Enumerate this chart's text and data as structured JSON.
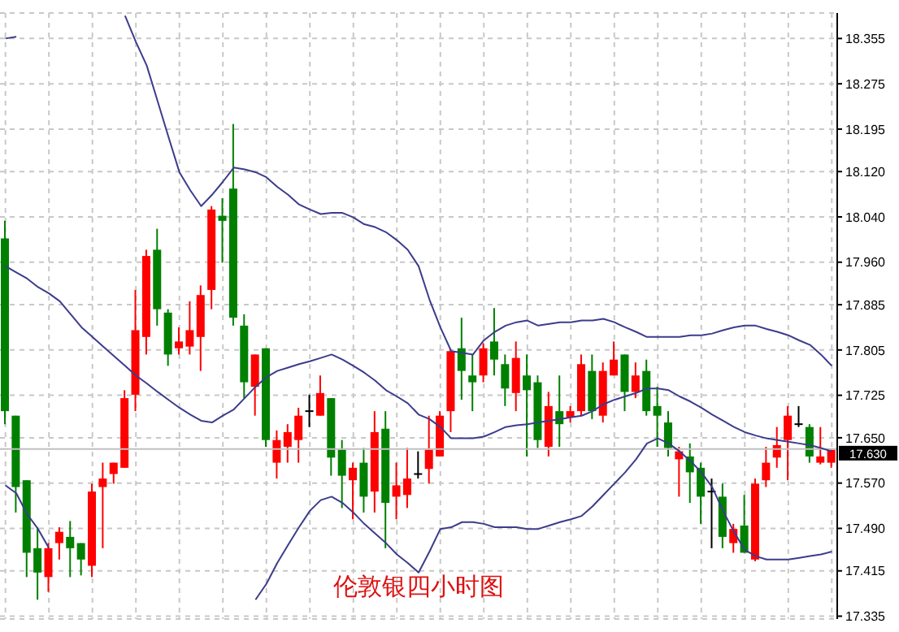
{
  "chart_data": {
    "type": "candlestick",
    "title": "伦敦银四小时图",
    "categories": [
      null,
      null,
      null,
      null,
      null,
      null,
      null,
      null,
      null,
      null,
      null,
      null,
      null,
      null,
      null,
      null,
      null,
      null,
      null,
      null,
      null,
      null,
      null,
      null,
      null,
      null,
      null,
      null,
      null,
      null,
      null,
      null,
      null,
      null,
      null,
      null,
      null,
      null,
      null,
      null,
      null,
      null,
      null,
      null,
      null,
      null,
      null,
      null,
      null,
      null,
      null,
      null,
      null,
      null,
      null,
      null,
      null,
      null,
      null,
      null,
      null,
      null,
      null,
      null,
      null,
      null,
      null,
      null,
      null,
      null,
      null,
      null,
      null,
      null,
      null,
      null,
      null
    ],
    "ohlc": [
      [
        18.002,
        18.033,
        17.674,
        17.697
      ],
      [
        17.689,
        17.689,
        17.518,
        17.563
      ],
      [
        17.575,
        17.575,
        17.404,
        17.447
      ],
      [
        17.455,
        17.492,
        17.364,
        17.412
      ],
      [
        17.404,
        17.464,
        17.378,
        17.455
      ],
      [
        17.464,
        17.492,
        17.435,
        17.484
      ],
      [
        17.475,
        17.503,
        17.404,
        17.455
      ],
      [
        17.464,
        17.464,
        17.407,
        17.435
      ],
      [
        17.424,
        17.569,
        17.404,
        17.555
      ],
      [
        17.563,
        17.606,
        17.455,
        17.578
      ],
      [
        17.586,
        17.606,
        17.569,
        17.606
      ],
      [
        17.597,
        17.734,
        17.597,
        17.72
      ],
      [
        17.726,
        17.911,
        17.697,
        17.84
      ],
      [
        17.828,
        17.982,
        17.797,
        17.971
      ],
      [
        17.982,
        18.019,
        17.848,
        17.877
      ],
      [
        17.871,
        17.877,
        17.777,
        17.797
      ],
      [
        17.808,
        17.845,
        17.797,
        17.82
      ],
      [
        17.811,
        17.891,
        17.797,
        17.84
      ],
      [
        17.828,
        17.919,
        17.768,
        17.902
      ],
      [
        17.911,
        18.059,
        17.877,
        18.053
      ],
      [
        18.042,
        18.073,
        17.959,
        18.033
      ],
      [
        18.09,
        18.204,
        17.848,
        17.862
      ],
      [
        17.848,
        17.868,
        17.72,
        17.748
      ],
      [
        17.74,
        17.797,
        17.689,
        17.797
      ],
      [
        17.808,
        17.808,
        17.634,
        17.646
      ],
      [
        17.606,
        17.663,
        17.578,
        17.646
      ],
      [
        17.634,
        17.674,
        17.606,
        17.66
      ],
      [
        17.646,
        17.703,
        17.606,
        17.689
      ],
      [
        17.697,
        17.726,
        17.669,
        17.697
      ],
      [
        17.689,
        17.76,
        17.689,
        17.729
      ],
      [
        17.72,
        17.72,
        17.583,
        17.615
      ],
      [
        17.629,
        17.646,
        17.526,
        17.583
      ],
      [
        17.575,
        17.606,
        17.506,
        17.597
      ],
      [
        17.606,
        17.632,
        17.518,
        17.546
      ],
      [
        17.555,
        17.697,
        17.518,
        17.66
      ],
      [
        17.666,
        17.697,
        17.455,
        17.535
      ],
      [
        17.546,
        17.606,
        17.506,
        17.566
      ],
      [
        17.549,
        17.632,
        17.526,
        17.578
      ],
      [
        17.586,
        17.626,
        17.578,
        17.586
      ],
      [
        17.595,
        17.689,
        17.569,
        17.629
      ],
      [
        17.617,
        17.697,
        17.617,
        17.689
      ],
      [
        17.697,
        17.805,
        17.66,
        17.803
      ],
      [
        17.808,
        17.862,
        17.717,
        17.768
      ],
      [
        17.76,
        17.797,
        17.697,
        17.748
      ],
      [
        17.76,
        17.817,
        17.748,
        17.808
      ],
      [
        17.82,
        17.879,
        17.76,
        17.788
      ],
      [
        17.78,
        17.797,
        17.706,
        17.737
      ],
      [
        17.729,
        17.82,
        17.697,
        17.791
      ],
      [
        17.76,
        17.797,
        17.617,
        17.734
      ],
      [
        17.748,
        17.76,
        17.632,
        17.646
      ],
      [
        17.634,
        17.731,
        17.617,
        17.706
      ],
      [
        17.697,
        17.76,
        17.634,
        17.674
      ],
      [
        17.686,
        17.706,
        17.677,
        17.697
      ],
      [
        17.697,
        17.797,
        17.689,
        17.78
      ],
      [
        17.768,
        17.797,
        17.683,
        17.697
      ],
      [
        17.689,
        17.783,
        17.677,
        17.768
      ],
      [
        17.76,
        17.82,
        17.76,
        17.788
      ],
      [
        17.797,
        17.797,
        17.697,
        17.731
      ],
      [
        17.731,
        17.783,
        17.72,
        17.76
      ],
      [
        17.768,
        17.788,
        17.689,
        17.697
      ],
      [
        17.706,
        17.74,
        17.634,
        17.689
      ],
      [
        17.677,
        17.697,
        17.617,
        17.632
      ],
      [
        17.612,
        17.634,
        17.546,
        17.626
      ],
      [
        17.617,
        17.64,
        17.535,
        17.589
      ],
      [
        17.597,
        17.606,
        17.498,
        17.546
      ],
      [
        17.555,
        17.578,
        17.455,
        17.555
      ],
      [
        17.546,
        17.569,
        17.455,
        17.475
      ],
      [
        17.464,
        17.498,
        17.447,
        17.489
      ],
      [
        17.495,
        17.549,
        17.447,
        17.447
      ],
      [
        17.435,
        17.578,
        17.432,
        17.569
      ],
      [
        17.575,
        17.634,
        17.563,
        17.606
      ],
      [
        17.615,
        17.669,
        17.597,
        17.637
      ],
      [
        17.646,
        17.706,
        17.575,
        17.689
      ],
      [
        17.674,
        17.706,
        17.669,
        17.674
      ],
      [
        17.669,
        17.674,
        17.606,
        17.617
      ],
      [
        17.606,
        17.669,
        17.603,
        17.617
      ],
      [
        17.606,
        17.629,
        17.597,
        17.629
      ]
    ],
    "colors": [
      "#008000",
      "#008000",
      "#008000",
      "#008000",
      "#ff0000",
      "#ff0000",
      "#008000",
      "#008000",
      "#ff0000",
      "#ff0000",
      "#ff0000",
      "#ff0000",
      "#ff0000",
      "#ff0000",
      "#008000",
      "#008000",
      "#ff0000",
      "#ff0000",
      "#ff0000",
      "#ff0000",
      "#008000",
      "#008000",
      "#008000",
      "#ff0000",
      "#008000",
      "#ff0000",
      "#ff0000",
      "#ff0000",
      "#000000",
      "#ff0000",
      "#008000",
      "#008000",
      "#ff0000",
      "#008000",
      "#ff0000",
      "#008000",
      "#ff0000",
      "#ff0000",
      "#000000",
      "#ff0000",
      "#ff0000",
      "#ff0000",
      "#008000",
      "#008000",
      "#ff0000",
      "#008000",
      "#008000",
      "#ff0000",
      "#008000",
      "#008000",
      "#ff0000",
      "#008000",
      "#ff0000",
      "#ff0000",
      "#008000",
      "#ff0000",
      "#ff0000",
      "#008000",
      "#ff0000",
      "#008000",
      "#008000",
      "#008000",
      "#ff0000",
      "#008000",
      "#008000",
      "#000000",
      "#008000",
      "#ff0000",
      "#008000",
      "#ff0000",
      "#ff0000",
      "#ff0000",
      "#ff0000",
      "#000000",
      "#008000",
      "#ff0000",
      "#ff0000"
    ],
    "series": [
      {
        "type": "line",
        "color": "#3c3c8c",
        "values": [
          18.355,
          18.358,
          null,
          null,
          null,
          null,
          null,
          null,
          null,
          null,
          null,
          18.395,
          18.349,
          18.307,
          18.244,
          18.181,
          18.119,
          18.087,
          18.059,
          18.079,
          18.102,
          18.127,
          18.124,
          18.119,
          18.11,
          18.093,
          18.079,
          18.062,
          18.053,
          18.045,
          18.047,
          18.047,
          18.039,
          18.027,
          18.022,
          18.013,
          17.999,
          17.982,
          17.953,
          17.894,
          17.845,
          17.803,
          17.8,
          17.797,
          17.822,
          17.837,
          17.848,
          17.854,
          17.857,
          17.848,
          17.851,
          17.854,
          17.854,
          17.857,
          17.857,
          17.86,
          17.854,
          17.845,
          17.837,
          17.828,
          17.828,
          17.828,
          17.828,
          17.831,
          17.831,
          17.834,
          17.84,
          17.845,
          17.848,
          17.848,
          17.842,
          17.837,
          17.831,
          17.822,
          17.814,
          17.797,
          17.777
        ]
      },
      {
        "type": "line",
        "color": "#3c3c8c",
        "values": [
          17.953,
          17.942,
          17.931,
          17.916,
          17.905,
          17.891,
          17.868,
          17.845,
          17.828,
          17.811,
          17.794,
          17.777,
          17.76,
          17.746,
          17.731,
          17.717,
          17.703,
          17.691,
          17.68,
          17.677,
          17.689,
          17.7,
          17.72,
          17.74,
          17.757,
          17.768,
          17.774,
          17.78,
          17.785,
          17.791,
          17.797,
          17.788,
          17.777,
          17.765,
          17.751,
          17.734,
          17.723,
          17.711,
          17.691,
          17.683,
          17.669,
          17.649,
          17.649,
          17.649,
          17.652,
          17.66,
          17.669,
          17.672,
          17.674,
          17.677,
          17.68,
          17.683,
          17.686,
          17.689,
          17.697,
          17.709,
          17.717,
          17.723,
          17.729,
          17.737,
          17.737,
          17.734,
          17.723,
          17.714,
          17.703,
          17.691,
          17.68,
          17.669,
          17.66,
          17.654,
          17.649,
          17.646,
          17.643,
          17.64,
          17.637,
          17.632,
          17.626
        ]
      },
      {
        "type": "line",
        "color": "#3c3c8c",
        "values": [
          17.566,
          17.552,
          17.515,
          17.489,
          17.455,
          null,
          null,
          null,
          null,
          null,
          null,
          null,
          null,
          null,
          null,
          null,
          null,
          null,
          null,
          null,
          null,
          null,
          null,
          17.364,
          17.392,
          17.429,
          17.461,
          17.492,
          17.521,
          17.54,
          17.546,
          17.535,
          17.518,
          17.498,
          17.481,
          17.464,
          17.444,
          17.429,
          17.412,
          17.449,
          17.489,
          17.492,
          17.501,
          17.501,
          17.498,
          17.492,
          17.492,
          17.492,
          17.489,
          17.489,
          17.495,
          17.501,
          17.506,
          17.512,
          17.529,
          17.549,
          17.569,
          17.589,
          17.612,
          17.64,
          17.649,
          17.64,
          17.626,
          17.609,
          17.589,
          17.563,
          17.521,
          17.484,
          17.452,
          17.441,
          17.435,
          17.435,
          17.435,
          17.438,
          17.441,
          17.444,
          17.449
        ]
      }
    ],
    "ylim": [
      17.33,
      18.4
    ],
    "yticks": [
      18.355,
      18.275,
      18.195,
      {
        "value": 18.12,
        "label": "18.120"
      },
      {
        "value": 18.04,
        "label": "18.040"
      },
      {
        "value": 17.96,
        "label": "17.960"
      },
      17.885,
      17.805,
      17.725,
      {
        "value": 17.65,
        "label": "17.650"
      },
      {
        "value": 17.57,
        "label": "17.570"
      },
      {
        "value": 17.49,
        "label": "17.490"
      },
      17.415,
      17.335
    ],
    "ref_lines": [
      {
        "axis": "y",
        "value": 17.63,
        "label": "17.630",
        "color": "#c0c0c0"
      }
    ],
    "grid": true,
    "tick_labels": "y"
  }
}
